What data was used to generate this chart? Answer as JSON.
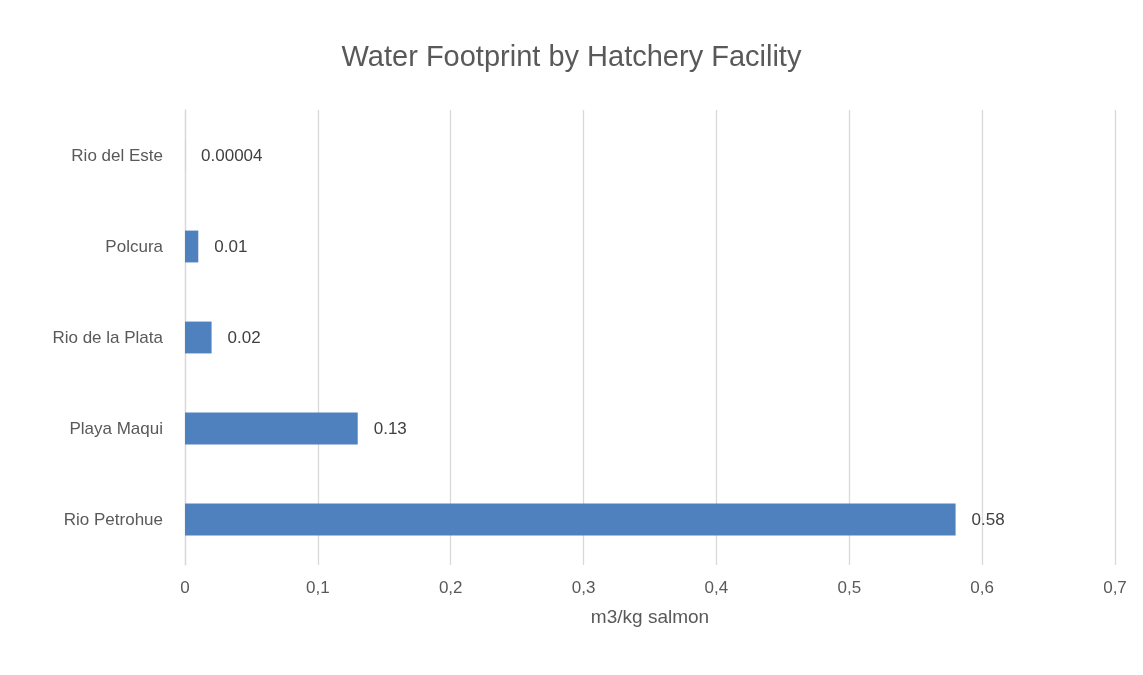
{
  "chart_data": {
    "type": "bar",
    "orientation": "horizontal",
    "title": "Water Footprint by Hatchery Facility",
    "xlabel": "m3/kg salmon",
    "categories": [
      "Rio del Este",
      "Polcura",
      "Rio de la Plata",
      "Playa Maqui",
      "Rio Petrohue"
    ],
    "values": [
      4e-05,
      0.01,
      0.02,
      0.13,
      0.58
    ],
    "color": "#4e81bd",
    "xlim": [
      0,
      0.7
    ],
    "xticks": [
      {
        "value": 0,
        "label": "0"
      },
      {
        "value": 0.1,
        "label": "0,1"
      },
      {
        "value": 0.2,
        "label": "0,2"
      },
      {
        "value": 0.3,
        "label": "0,3"
      },
      {
        "value": 0.4,
        "label": "0,4"
      },
      {
        "value": 0.5,
        "label": "0,5"
      },
      {
        "value": 0.6,
        "label": "0,6"
      },
      {
        "value": 0.7,
        "label": "0,7"
      }
    ],
    "value_labels": [
      "0.00004",
      "0.01",
      "0.02",
      "0.13",
      "0.58"
    ],
    "grid": "x"
  }
}
